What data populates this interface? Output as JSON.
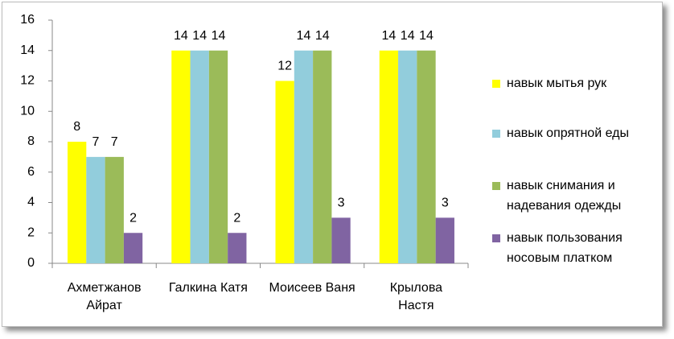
{
  "chart_data": {
    "type": "bar",
    "categories": [
      "Ахметжанов Айрат",
      "Галкина Катя",
      "Моисеев Ваня",
      "Крылова Настя"
    ],
    "series": [
      {
        "name": "навык мытья рук",
        "color": "#ffff00",
        "values": [
          8,
          14,
          12,
          14
        ]
      },
      {
        "name": "навык опрятной еды",
        "color": "#92cddc",
        "values": [
          7,
          14,
          14,
          14
        ]
      },
      {
        "name": "навык снимания и надевания одежды",
        "color": "#9bbb59",
        "values": [
          7,
          14,
          14,
          14
        ]
      },
      {
        "name": "навык пользования носовым платком",
        "color": "#8064a2",
        "values": [
          2,
          2,
          3,
          3
        ]
      }
    ],
    "ylim": [
      0,
      16
    ],
    "yticks": [
      0,
      2,
      4,
      6,
      8,
      10,
      12,
      14,
      16
    ],
    "grid": false,
    "legend": "right"
  }
}
